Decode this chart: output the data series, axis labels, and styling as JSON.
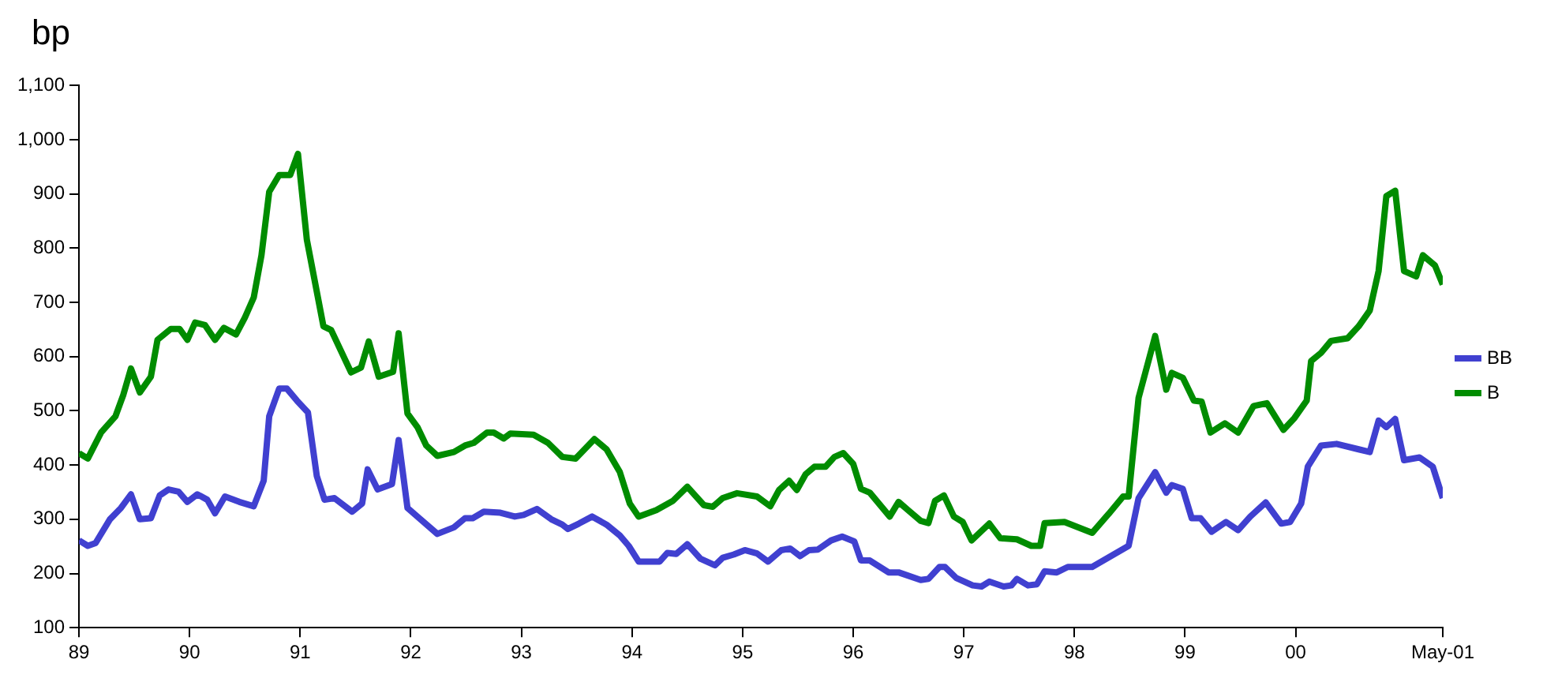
{
  "chart_data": {
    "type": "line",
    "ylabel": "bp",
    "xlim": [
      1989,
      2001.33
    ],
    "xticks": [
      {
        "value": 1989,
        "label": "89"
      },
      {
        "value": 1990,
        "label": "90"
      },
      {
        "value": 1991,
        "label": "91"
      },
      {
        "value": 1992,
        "label": "92"
      },
      {
        "value": 1993,
        "label": "93"
      },
      {
        "value": 1994,
        "label": "94"
      },
      {
        "value": 1995,
        "label": "95"
      },
      {
        "value": 1996,
        "label": "96"
      },
      {
        "value": 1997,
        "label": "97"
      },
      {
        "value": 1998,
        "label": "98"
      },
      {
        "value": 1999,
        "label": "99"
      },
      {
        "value": 2000,
        "label": "00"
      },
      {
        "value": 2001.33,
        "label": "May-01"
      }
    ],
    "ylim": [
      100,
      1100
    ],
    "yticks": [
      100,
      200,
      300,
      400,
      500,
      600,
      700,
      800,
      900,
      {
        "value": 1000,
        "label": "1,000"
      },
      {
        "value": 1100,
        "label": "1,100"
      }
    ],
    "grid": false,
    "legend": "right",
    "marker": "none",
    "line_style": "solid",
    "series": [
      {
        "name": "BB",
        "color": "#4040d0",
        "x": [
          1989.0,
          1989.08,
          1989.15,
          1989.28,
          1989.38,
          1989.47,
          1989.55,
          1989.65,
          1989.73,
          1989.81,
          1989.9,
          1989.98,
          1990.07,
          1990.16,
          1990.23,
          1990.32,
          1990.45,
          1990.58,
          1990.67,
          1990.72,
          1990.81,
          1990.88,
          1990.97,
          1991.07,
          1991.15,
          1991.22,
          1991.31,
          1991.47,
          1991.56,
          1991.61,
          1991.7,
          1991.83,
          1991.89,
          1991.97,
          1992.06,
          1992.24,
          1992.39,
          1992.49,
          1992.56,
          1992.66,
          1992.81,
          1992.94,
          1993.02,
          1993.14,
          1993.27,
          1993.37,
          1993.42,
          1993.52,
          1993.64,
          1993.77,
          1993.89,
          1993.97,
          1994.06,
          1994.25,
          1994.32,
          1994.4,
          1994.5,
          1994.62,
          1994.75,
          1994.82,
          1994.92,
          1995.02,
          1995.13,
          1995.23,
          1995.35,
          1995.43,
          1995.52,
          1995.6,
          1995.68,
          1995.8,
          1995.9,
          1996.01,
          1996.07,
          1996.15,
          1996.32,
          1996.41,
          1996.61,
          1996.68,
          1996.78,
          1996.83,
          1996.93,
          1997.08,
          1997.16,
          1997.23,
          1997.36,
          1997.43,
          1997.48,
          1997.58,
          1997.66,
          1997.73,
          1997.84,
          1997.94,
          1998.16,
          1998.49,
          1998.58,
          1998.73,
          1998.83,
          1998.88,
          1998.98,
          1999.06,
          1999.14,
          1999.24,
          1999.37,
          1999.48,
          1999.59,
          1999.73,
          1999.87,
          1999.95,
          2000.05,
          2000.11,
          2000.23,
          2000.37,
          2000.57,
          2000.67,
          2000.75,
          2000.82,
          2000.9,
          2000.98,
          2001.12,
          2001.24,
          2001.33
        ],
        "values": [
          261,
          251,
          256,
          300,
          321,
          346,
          300,
          302,
          344,
          355,
          351,
          332,
          346,
          336,
          311,
          342,
          332,
          324,
          371,
          490,
          541,
          541,
          519,
          497,
          380,
          336,
          339,
          314,
          329,
          392,
          355,
          365,
          446,
          321,
          305,
          273,
          285,
          302,
          302,
          314,
          312,
          305,
          308,
          319,
          300,
          290,
          282,
          292,
          305,
          290,
          270,
          251,
          222,
          222,
          238,
          236,
          254,
          227,
          215,
          229,
          235,
          243,
          237,
          222,
          243,
          246,
          232,
          243,
          244,
          261,
          268,
          259,
          224,
          224,
          202,
          202,
          188,
          190,
          212,
          212,
          192,
          178,
          176,
          185,
          176,
          178,
          190,
          178,
          180,
          204,
          202,
          212,
          212,
          251,
          339,
          387,
          349,
          363,
          356,
          302,
          302,
          277,
          295,
          280,
          305,
          331,
          292,
          295,
          329,
          397,
          436,
          439,
          429,
          424,
          482,
          470,
          485,
          409,
          414,
          397,
          339
        ]
      },
      {
        "name": "B",
        "color": "#008c00",
        "x": [
          1989.0,
          1989.08,
          1989.2,
          1989.33,
          1989.4,
          1989.47,
          1989.55,
          1989.65,
          1989.71,
          1989.83,
          1989.91,
          1989.98,
          1990.05,
          1990.14,
          1990.23,
          1990.31,
          1990.42,
          1990.5,
          1990.58,
          1990.65,
          1990.72,
          1990.81,
          1990.91,
          1990.98,
          1991.06,
          1991.21,
          1991.28,
          1991.46,
          1991.55,
          1991.62,
          1991.71,
          1991.84,
          1991.89,
          1991.97,
          1992.06,
          1992.14,
          1992.24,
          1992.39,
          1992.49,
          1992.57,
          1992.69,
          1992.75,
          1992.84,
          1992.9,
          1993.11,
          1993.24,
          1993.37,
          1993.49,
          1993.66,
          1993.77,
          1993.89,
          1993.98,
          1994.06,
          1994.22,
          1994.37,
          1994.5,
          1994.65,
          1994.73,
          1994.82,
          1994.95,
          1995.13,
          1995.25,
          1995.33,
          1995.42,
          1995.49,
          1995.57,
          1995.65,
          1995.75,
          1995.83,
          1995.91,
          1996.0,
          1996.07,
          1996.15,
          1996.33,
          1996.41,
          1996.5,
          1996.61,
          1996.68,
          1996.74,
          1996.82,
          1996.91,
          1996.99,
          1997.07,
          1997.23,
          1997.33,
          1997.48,
          1997.61,
          1997.69,
          1997.73,
          1997.91,
          1998.16,
          1998.31,
          1998.44,
          1998.49,
          1998.58,
          1998.73,
          1998.83,
          1998.88,
          1998.98,
          1999.08,
          1999.15,
          1999.23,
          1999.36,
          1999.48,
          1999.62,
          1999.74,
          1999.89,
          1999.99,
          2000.1,
          2000.14,
          2000.23,
          2000.32,
          2000.47,
          2000.57,
          2000.67,
          2000.75,
          2000.82,
          2000.9,
          2000.98,
          2001.09,
          2001.15,
          2001.26,
          2001.33
        ],
        "values": [
          422,
          412,
          460,
          490,
          529,
          578,
          534,
          563,
          631,
          651,
          651,
          631,
          663,
          658,
          631,
          653,
          641,
          672,
          709,
          787,
          904,
          935,
          935,
          974,
          816,
          656,
          649,
          571,
          580,
          628,
          563,
          572,
          643,
          495,
          470,
          436,
          417,
          424,
          436,
          441,
          460,
          460,
          449,
          458,
          456,
          441,
          415,
          412,
          448,
          429,
          387,
          329,
          305,
          317,
          334,
          360,
          326,
          323,
          339,
          348,
          342,
          324,
          354,
          371,
          354,
          383,
          397,
          397,
          415,
          422,
          402,
          356,
          349,
          305,
          332,
          316,
          297,
          293,
          334,
          344,
          305,
          295,
          261,
          292,
          265,
          263,
          251,
          251,
          293,
          295,
          275,
          310,
          342,
          342,
          524,
          638,
          539,
          570,
          561,
          519,
          517,
          460,
          477,
          460,
          509,
          514,
          465,
          487,
          519,
          592,
          607,
          629,
          634,
          656,
          685,
          758,
          896,
          906,
          758,
          748,
          787,
          768,
          733
        ]
      }
    ]
  }
}
